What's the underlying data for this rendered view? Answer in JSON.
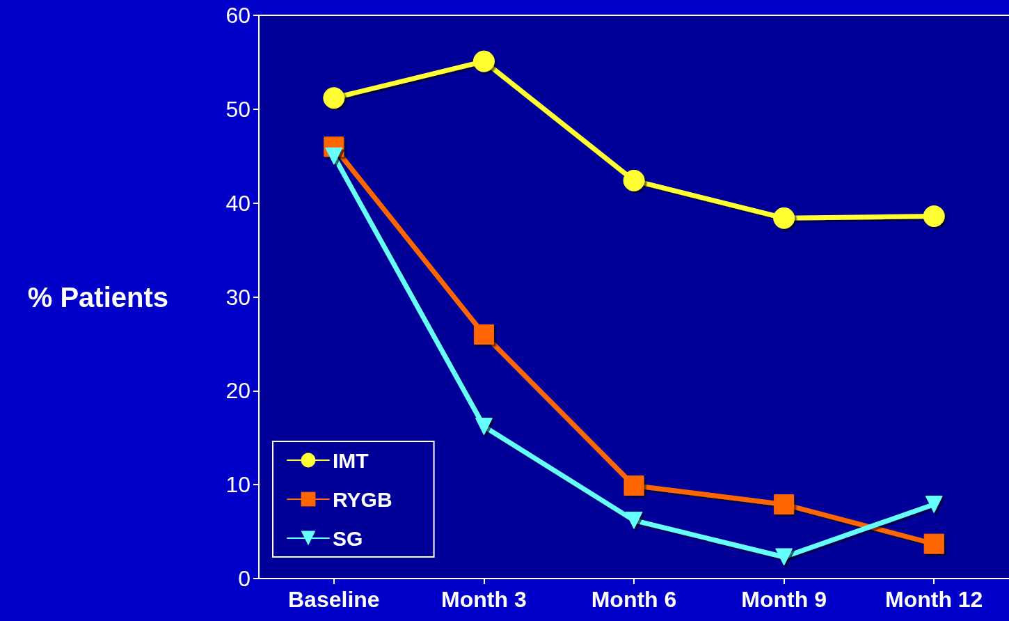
{
  "chart_data": {
    "type": "line",
    "ylabel": "% Patients",
    "categories": [
      "Baseline",
      "Month 3",
      "Month 6",
      "Month 9",
      "Month 12"
    ],
    "series": [
      {
        "name": "IMT",
        "color": "#ffff33",
        "marker": "circle",
        "values": [
          51.2,
          55.1,
          42.4,
          38.4,
          38.6
        ]
      },
      {
        "name": "RYGB",
        "color": "#ff6600",
        "marker": "square",
        "values": [
          46.0,
          26.0,
          9.9,
          7.9,
          3.7
        ]
      },
      {
        "name": "SG",
        "color": "#66ffff",
        "marker": "triangle",
        "values": [
          45.0,
          16.2,
          6.2,
          2.3,
          7.9
        ]
      }
    ],
    "ylim": [
      0,
      60
    ],
    "yticks": [
      0,
      10,
      20,
      30,
      40,
      50,
      60
    ],
    "grid": false,
    "legend": "bottom left",
    "line_style": "solid"
  }
}
